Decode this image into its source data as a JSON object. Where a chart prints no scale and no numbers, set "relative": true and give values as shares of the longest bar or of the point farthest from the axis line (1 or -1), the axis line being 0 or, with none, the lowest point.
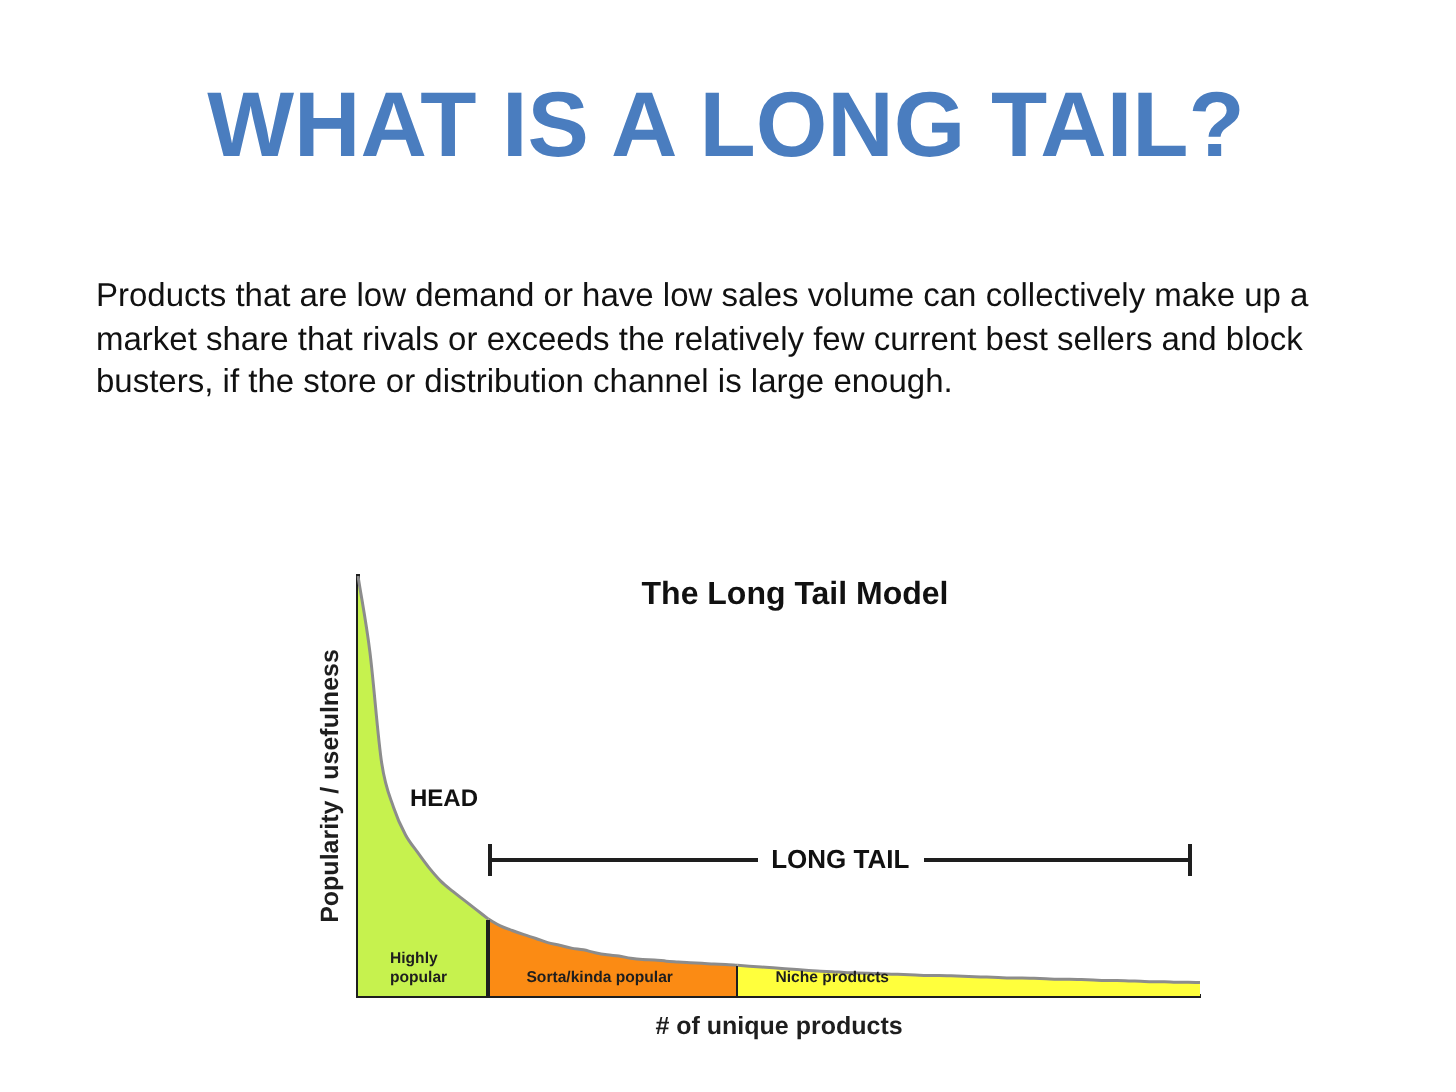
{
  "chart_data": {
    "type": "area",
    "title": "WHAT IS A LONG TAIL?",
    "subtitle": "The Long Tail Model",
    "xlabel": "# of unique products",
    "ylabel": "Popularity / usefulness",
    "relative": true,
    "annotations": [
      "Products that are low demand or have low sales volume can collectively make up a market share that rivals or exceeds the relatively few current best sellers and block busters, if the store or distribution channel is large enough.",
      "HEAD",
      "LONG TAIL"
    ],
    "categories": [
      null,
      null,
      null,
      null,
      null,
      null,
      null,
      null,
      null,
      null,
      null,
      null,
      null,
      null,
      null,
      null,
      null,
      null,
      null,
      null,
      null,
      null,
      null,
      null,
      null,
      null,
      null,
      null,
      null,
      null,
      null,
      null,
      null,
      null,
      null,
      null,
      null,
      null,
      null,
      null,
      null,
      null,
      null,
      null,
      null,
      null,
      null,
      null,
      null,
      null,
      null,
      null,
      null,
      null,
      null,
      null,
      null,
      null,
      null,
      null,
      null,
      null,
      null,
      null,
      null,
      null,
      null,
      null,
      null,
      null,
      null,
      null
    ],
    "series": [
      {
        "name": "Highly popular",
        "color": "#c6f24e",
        "values": [
          1,
          0.82,
          0.554,
          0.449,
          0.384,
          0.343,
          0.305,
          0.273,
          0.249,
          0.227,
          0.205,
          0.183,
          null,
          null,
          null,
          null,
          null,
          null,
          null,
          null,
          null,
          null,
          null,
          null,
          null,
          null,
          null,
          null,
          null,
          null,
          null,
          null,
          null,
          null,
          null,
          null,
          null,
          null,
          null,
          null,
          null,
          null,
          null,
          null,
          null,
          null,
          null,
          null,
          null,
          null,
          null,
          null,
          null,
          null,
          null,
          null,
          null,
          null,
          null,
          null,
          null,
          null,
          null,
          null,
          null,
          null,
          null,
          null,
          null,
          null,
          null,
          null
        ]
      },
      {
        "name": "Sorta/kinda popular",
        "color": "#fb8b14",
        "values": [
          null,
          null,
          null,
          null,
          null,
          null,
          null,
          null,
          null,
          null,
          null,
          0.183,
          0.167,
          0.156,
          0.146,
          0.137,
          0.127,
          0.121,
          0.114,
          0.11,
          0.103,
          0.098,
          0.095,
          0.09,
          0.087,
          0.086,
          0.083,
          0.081,
          0.079,
          0.078,
          0.076,
          0.075,
          0.073,
          null,
          null,
          null,
          null,
          null,
          null,
          null,
          null,
          null,
          null,
          null,
          null,
          null,
          null,
          null,
          null,
          null,
          null,
          null,
          null,
          null,
          null,
          null,
          null,
          null,
          null,
          null,
          null,
          null,
          null,
          null,
          null,
          null,
          null,
          null,
          null,
          null,
          null,
          null
        ]
      },
      {
        "name": "Niche products",
        "color": "#ffff3c",
        "values": [
          null,
          null,
          null,
          null,
          null,
          null,
          null,
          null,
          null,
          null,
          null,
          null,
          null,
          null,
          null,
          null,
          null,
          null,
          null,
          null,
          null,
          null,
          null,
          null,
          null,
          null,
          null,
          null,
          null,
          null,
          null,
          null,
          0.073,
          0.071,
          0.069,
          0.067,
          0.065,
          0.063,
          0.061,
          0.059,
          0.058,
          0.056,
          0.055,
          0.054,
          0.053,
          0.052,
          0.051,
          0.05,
          0.049,
          0.049,
          0.048,
          0.047,
          0.046,
          0.045,
          0.044,
          0.043,
          0.043,
          0.042,
          0.041,
          0.04,
          0.04,
          0.039,
          0.038,
          0.037,
          0.037,
          0.036,
          0.035,
          0.034,
          0.034,
          0.033,
          0.033,
          0.032
        ]
      }
    ]
  }
}
